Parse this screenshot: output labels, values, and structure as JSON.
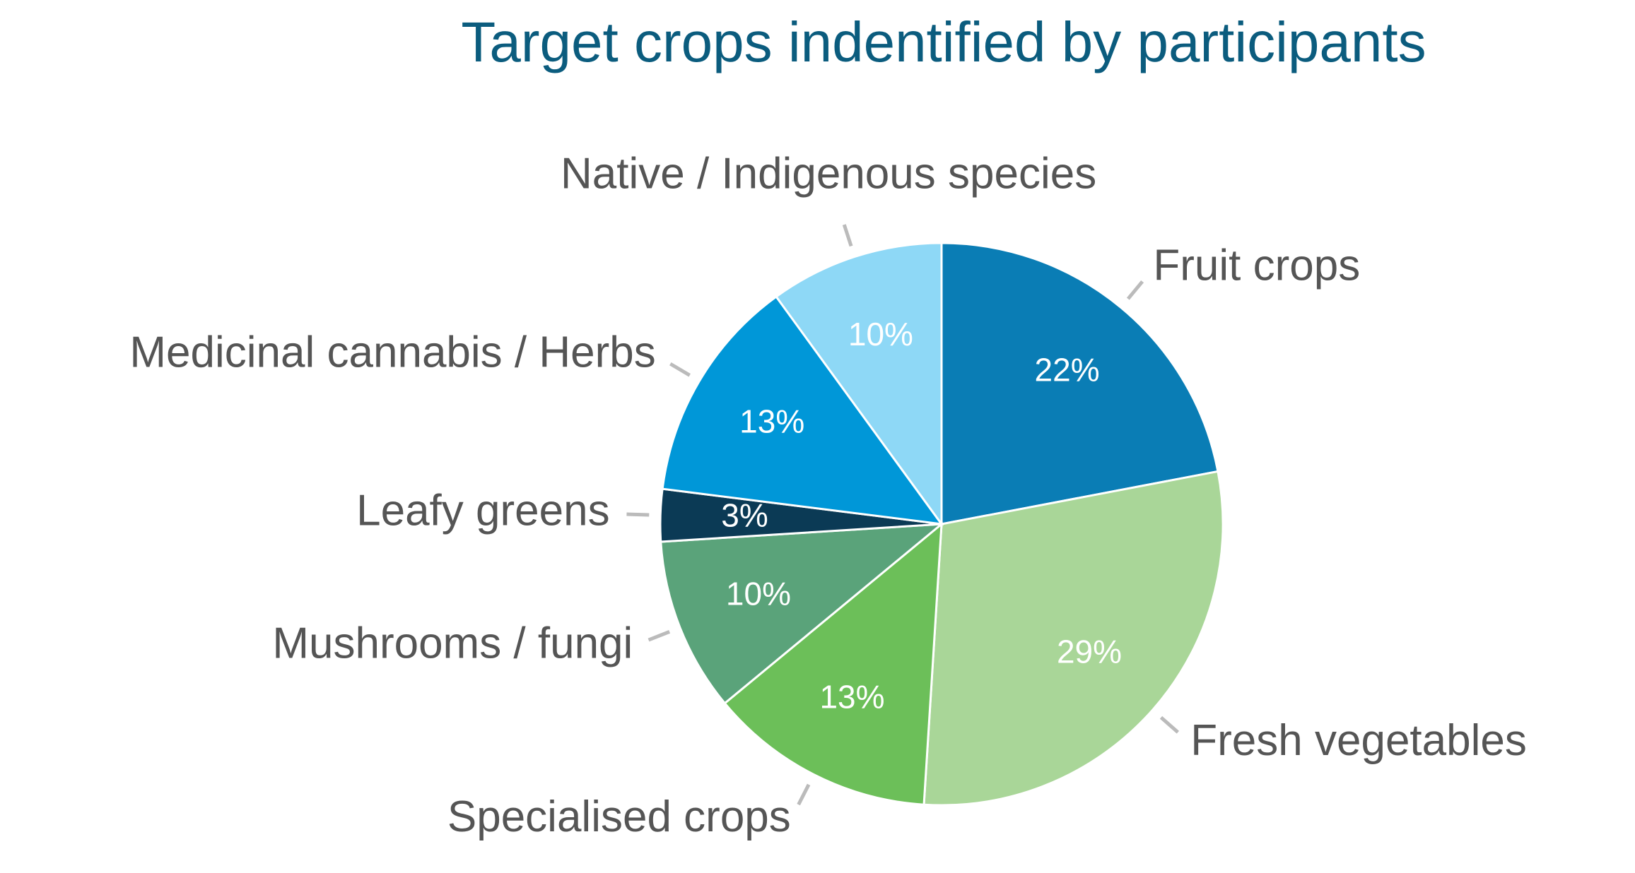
{
  "chart_data": {
    "type": "pie",
    "title": "Target crops indentified by participants",
    "categories": [
      "Fruit crops",
      "Fresh vegetables",
      "Specialised crops",
      "Mushrooms / fungi",
      "Leafy greens",
      "Medicinal cannabis / Herbs",
      "Native / Indigenous species"
    ],
    "values": [
      22,
      29,
      13,
      10,
      3,
      13,
      10
    ],
    "value_labels": [
      "22%",
      "29%",
      "13%",
      "10%",
      "3%",
      "13%",
      "10%"
    ],
    "colors": [
      "#0a7db5",
      "#a9d698",
      "#6cbf59",
      "#5aa37a",
      "#0b3a55",
      "#0097d8",
      "#8ed8f6"
    ]
  }
}
